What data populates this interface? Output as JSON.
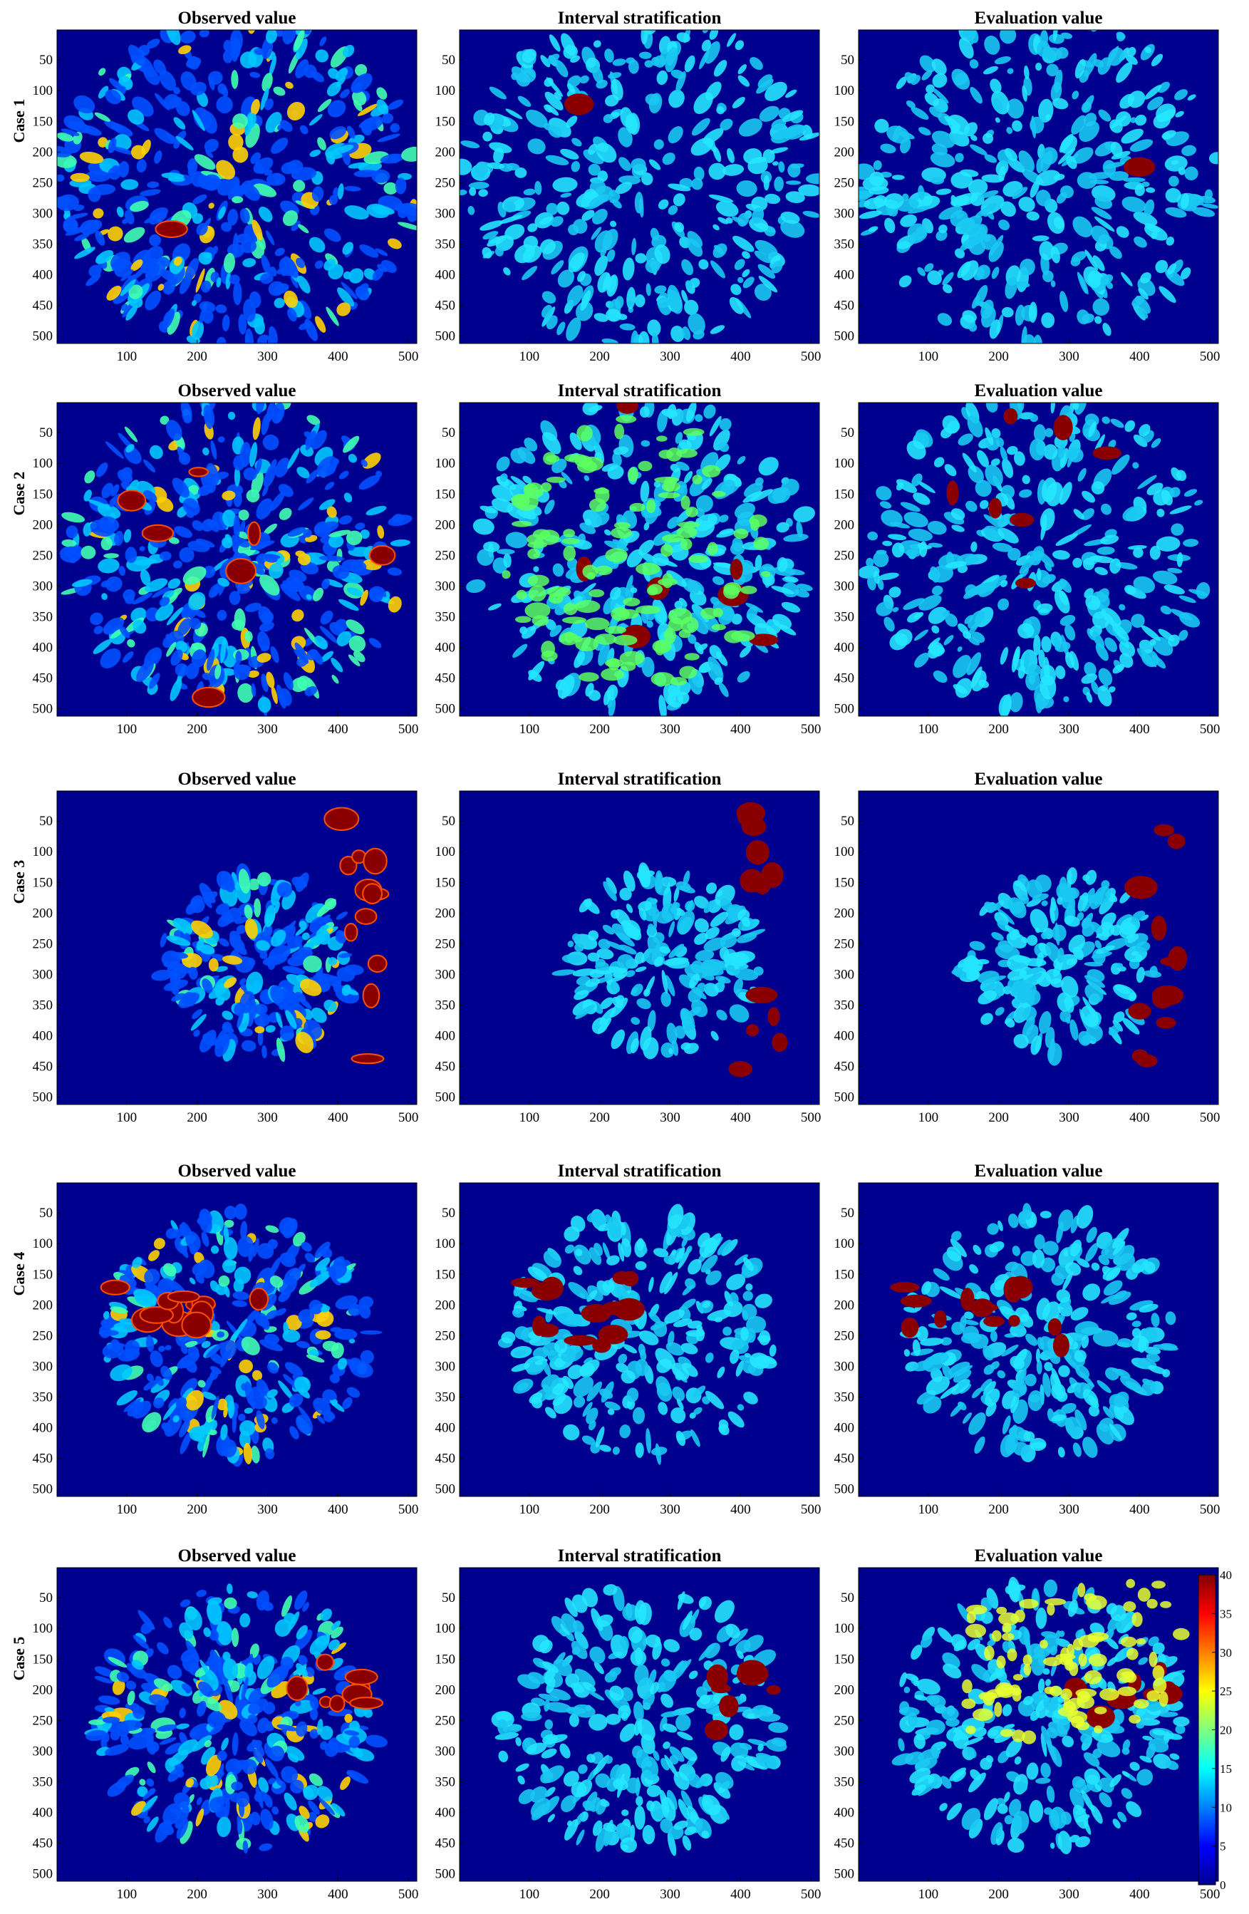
{
  "chart_data": {
    "type": "heatmap",
    "description_titles": [
      "Observed value",
      "Interval stratification",
      "Evaluation value"
    ],
    "rows": [
      {
        "label": "Case 1",
        "titles": [
          "Observed value",
          "Interval stratification",
          "Evaluation value"
        ]
      },
      {
        "label": "Case 2",
        "titles": [
          "Observed value",
          "Interval stratification",
          "Evaluation value"
        ]
      },
      {
        "label": "Case 3",
        "titles": [
          "Observed value",
          "Interval stratification",
          "Evaluation value"
        ]
      },
      {
        "label": "Case 4",
        "titles": [
          "Observed value",
          "Interval stratification",
          "Evaluation value"
        ]
      },
      {
        "label": "Case 5",
        "titles": [
          "Observed value",
          "Interval stratification",
          "Evaluation value"
        ]
      }
    ],
    "x_ticks": [
      "100",
      "200",
      "300",
      "400",
      "500"
    ],
    "y_ticks": [
      "50",
      "100",
      "150",
      "200",
      "250",
      "300",
      "350",
      "400",
      "450",
      "500"
    ],
    "xlim": [
      1,
      512
    ],
    "ylim": [
      1,
      512
    ],
    "y_reversed": true,
    "colormap": "jet",
    "colorbar": {
      "min": 0,
      "max": 40,
      "ticks": [
        "0",
        "5",
        "10",
        "15",
        "20",
        "25",
        "30",
        "35",
        "40"
      ]
    },
    "colors": {
      "background": "#00008f",
      "low": "#0040ff",
      "mid": "#00d8ff",
      "high": "#8a0000"
    }
  }
}
